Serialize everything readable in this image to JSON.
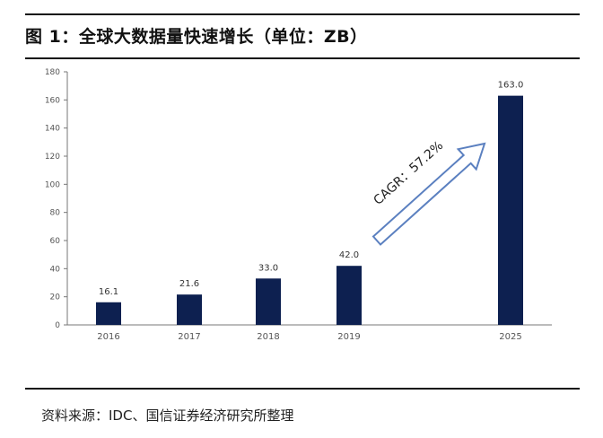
{
  "header": {
    "title": "图 1：全球大数据量快速增长（单位：ZB）"
  },
  "footer": {
    "source": "资料来源：IDC、国信证券经济研究所整理"
  },
  "chart_data": {
    "type": "bar",
    "categories": [
      "2016",
      "2017",
      "2018",
      "2019",
      "2025"
    ],
    "values": [
      16.1,
      21.6,
      33.0,
      42.0,
      163.0
    ],
    "value_labels": [
      "16.1",
      "21.6",
      "33.0",
      "42.0",
      "163.0"
    ],
    "ylim": [
      0,
      180
    ],
    "yticks": [
      0,
      20,
      40,
      60,
      80,
      100,
      120,
      140,
      160,
      180
    ],
    "annotation": "CAGR：57.2%",
    "bar_color": "#0d2050",
    "grid": false,
    "legend": "none"
  }
}
